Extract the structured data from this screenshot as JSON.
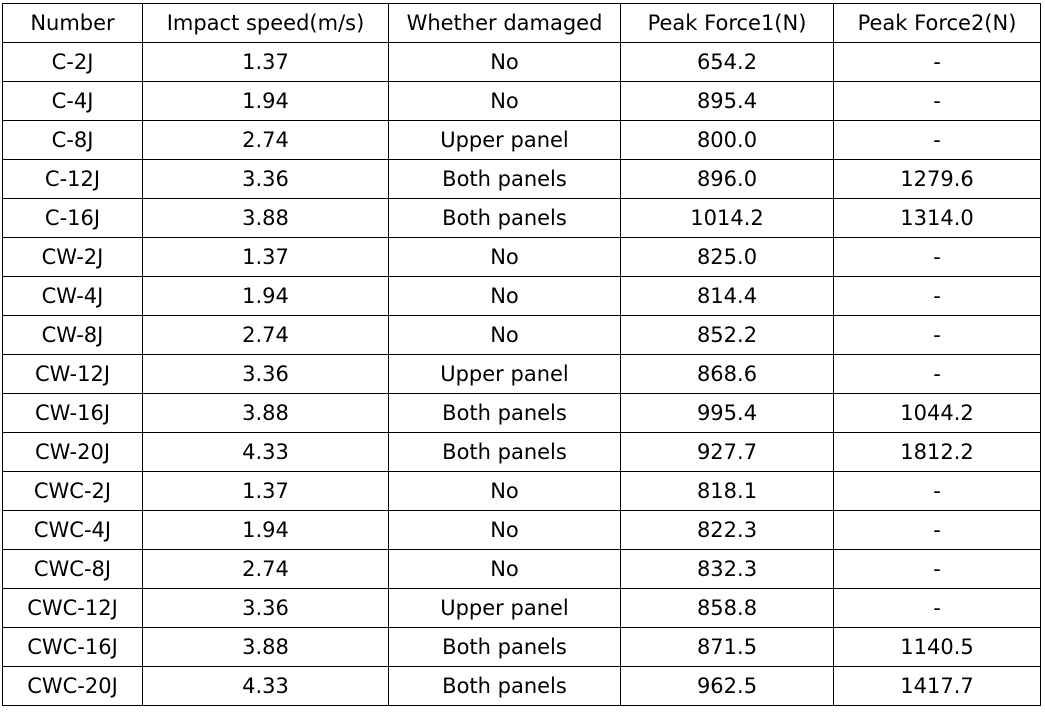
{
  "table": {
    "header": [
      "Number",
      "Impact speed(m/s)",
      "Whether damaged",
      "Peak Force1(N)",
      "Peak Force2(N)"
    ],
    "rows": [
      [
        "C-2J",
        "1.37",
        "No",
        "654.2",
        "-"
      ],
      [
        "C-4J",
        "1.94",
        "No",
        "895.4",
        "-"
      ],
      [
        "C-8J",
        "2.74",
        "Upper panel",
        "800.0",
        "-"
      ],
      [
        "C-12J",
        "3.36",
        "Both panels",
        "896.0",
        "1279.6"
      ],
      [
        "C-16J",
        "3.88",
        "Both panels",
        "1014.2",
        "1314.0"
      ],
      [
        "CW-2J",
        "1.37",
        "No",
        "825.0",
        "-"
      ],
      [
        "CW-4J",
        "1.94",
        "No",
        "814.4",
        "-"
      ],
      [
        "CW-8J",
        "2.74",
        "No",
        "852.2",
        "-"
      ],
      [
        "CW-12J",
        "3.36",
        "Upper panel",
        "868.6",
        "-"
      ],
      [
        "CW-16J",
        "3.88",
        "Both panels",
        "995.4",
        "1044.2"
      ],
      [
        "CW-20J",
        "4.33",
        "Both panels",
        "927.7",
        "1812.2"
      ],
      [
        "CWC-2J",
        "1.37",
        "No",
        "818.1",
        "-"
      ],
      [
        "CWC-4J",
        "1.94",
        "No",
        "822.3",
        "-"
      ],
      [
        "CWC-8J",
        "2.74",
        "No",
        "832.3",
        "-"
      ],
      [
        "CWC-12J",
        "3.36",
        "Upper panel",
        "858.8",
        "-"
      ],
      [
        "CWC-16J",
        "3.88",
        "Both panels",
        "871.5",
        "1140.5"
      ],
      [
        "CWC-20J",
        "4.33",
        "Both panels",
        "962.5",
        "1417.7"
      ]
    ]
  }
}
